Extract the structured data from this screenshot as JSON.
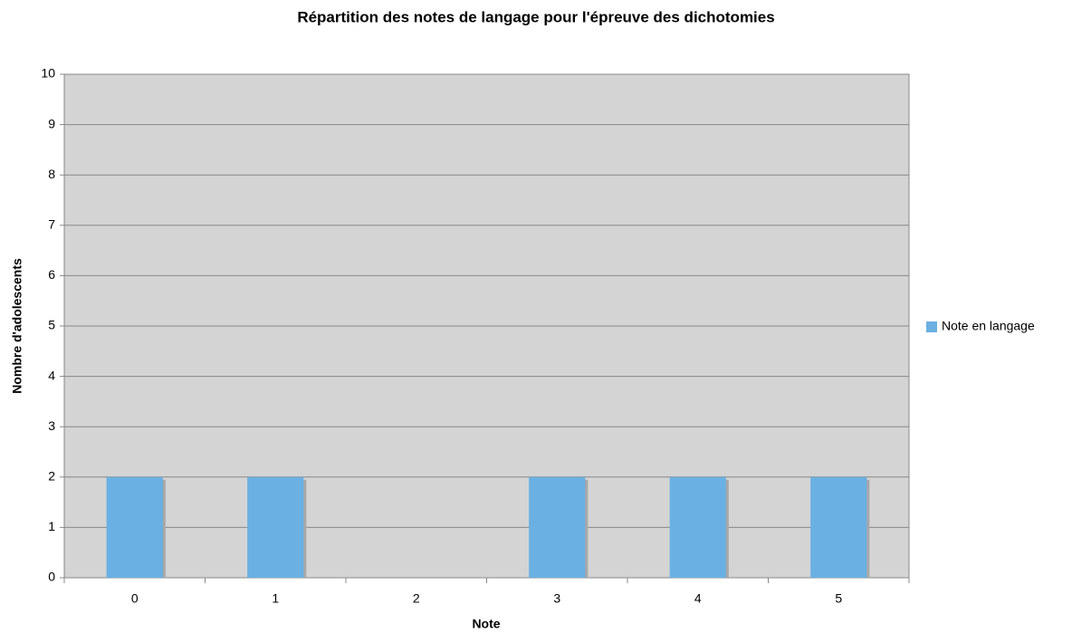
{
  "chart_data": {
    "type": "bar",
    "title": "Répartition des notes de langage pour l'épreuve des dichotomies",
    "x_label": "Note",
    "y_label": "Nombre d'adolescents",
    "categories": [
      "0",
      "1",
      "2",
      "3",
      "4",
      "5"
    ],
    "series": [
      {
        "name": "Note en langage",
        "color": "#6ab0e2",
        "values": [
          2,
          2,
          0,
          2,
          2,
          2
        ]
      }
    ],
    "ylim": [
      0,
      10
    ],
    "yticks": [
      0,
      1,
      2,
      3,
      4,
      5,
      6,
      7,
      8,
      9,
      10
    ],
    "grid": true,
    "legend": "right"
  }
}
